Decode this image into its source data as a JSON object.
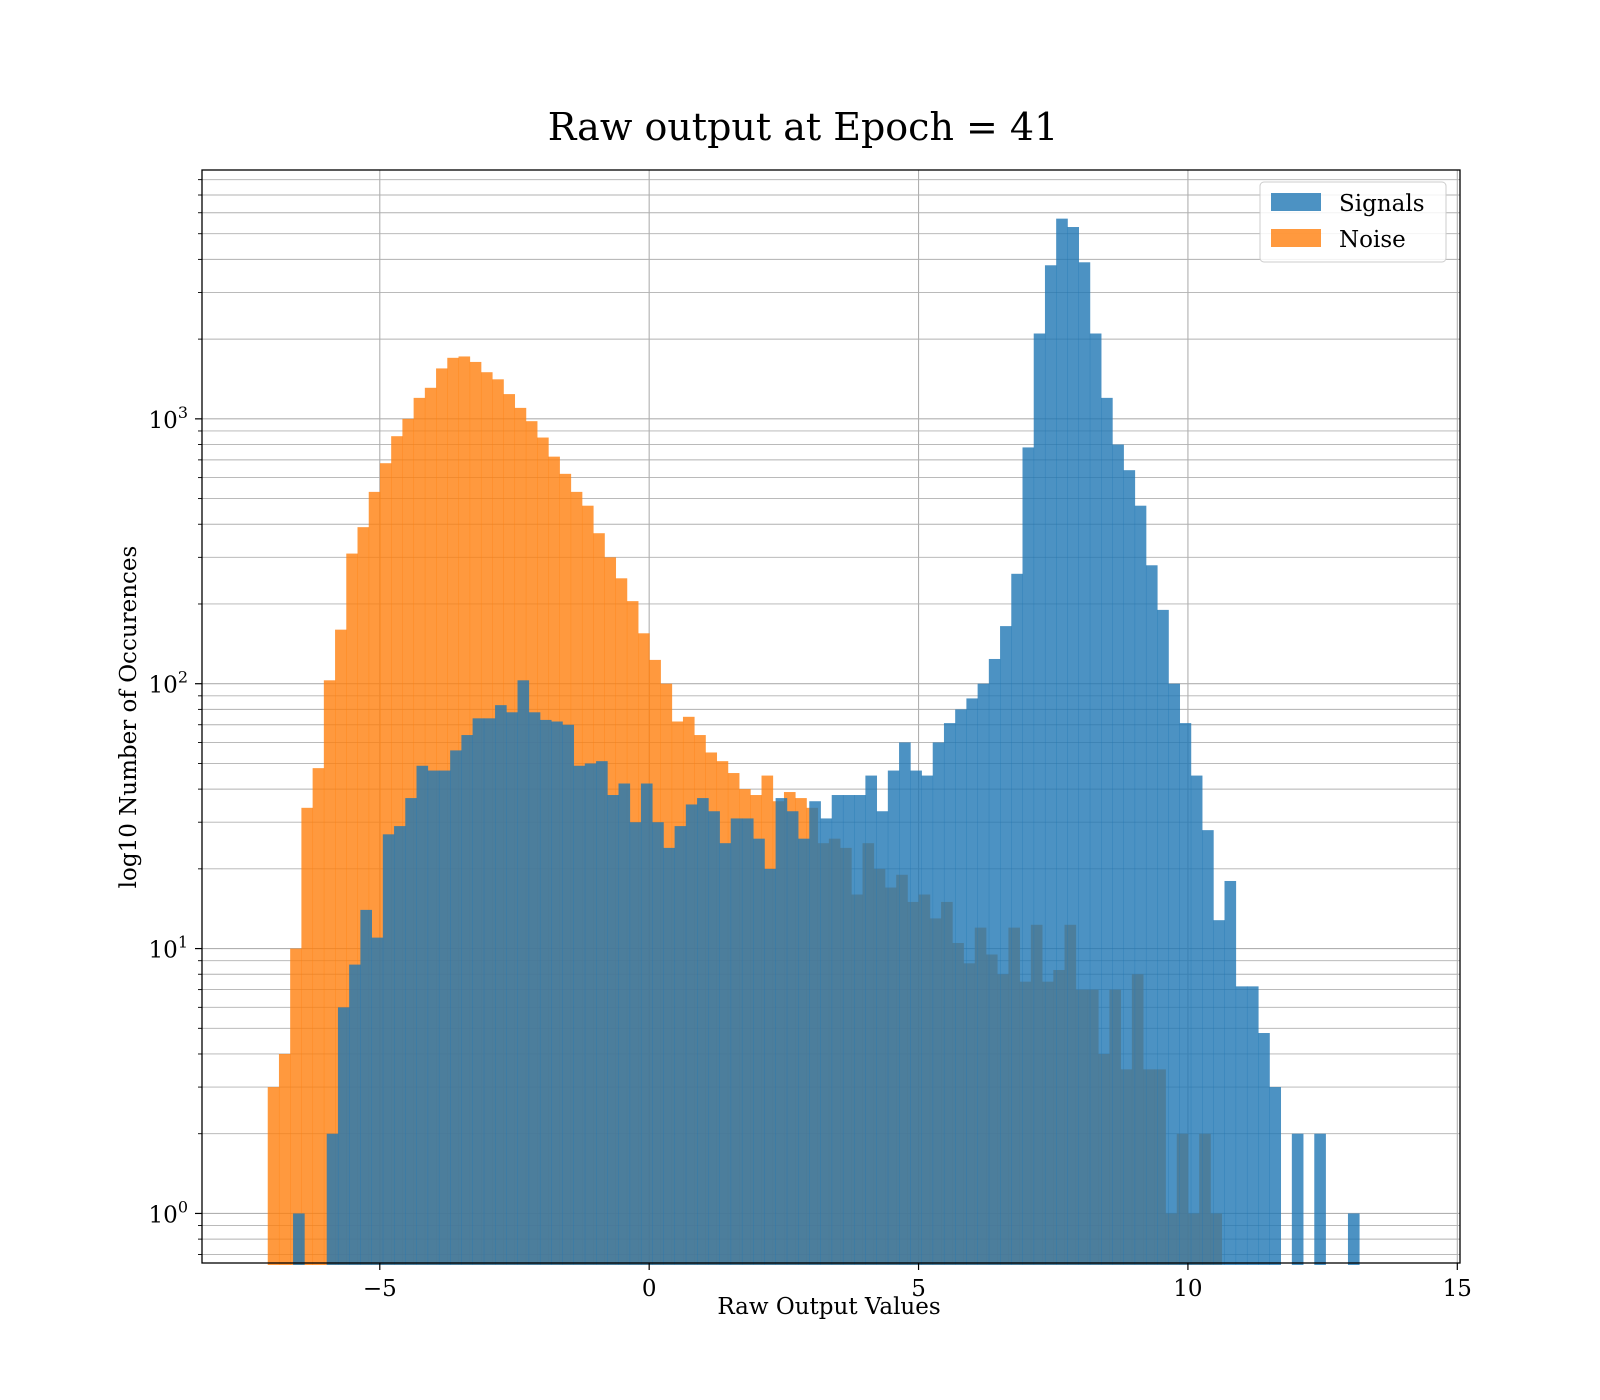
{
  "chart_data": {
    "type": "bar",
    "title": "Raw output at Epoch = 41",
    "xlabel": "Raw Output Values",
    "ylabel": "log10 Number of Occurences",
    "x_scale": "linear",
    "y_scale": "log",
    "xlim": [
      -8.3,
      15.05
    ],
    "ylim": [
      0.65,
      8700
    ],
    "x_ticks": [
      {
        "value": -5,
        "label": "−5"
      },
      {
        "value": 0,
        "label": "0"
      },
      {
        "value": 5,
        "label": "5"
      },
      {
        "value": 10,
        "label": "10"
      },
      {
        "value": 15,
        "label": "15"
      }
    ],
    "y_ticks": [
      {
        "value": 1,
        "base": "10",
        "exp": "0"
      },
      {
        "value": 10,
        "base": "10",
        "exp": "1"
      },
      {
        "value": 100,
        "base": "10",
        "exp": "2"
      },
      {
        "value": 1000,
        "base": "10",
        "exp": "3"
      }
    ],
    "grid": true,
    "legend": {
      "position": "top-right"
    },
    "series": [
      {
        "name": "Noise",
        "color": "#ff7f0e",
        "bin_start": -7.08,
        "bin_width": 0.2083,
        "values": [
          3,
          4,
          10,
          34,
          48,
          103,
          160,
          310,
          390,
          530,
          680,
          860,
          1000,
          1200,
          1310,
          1550,
          1700,
          1720,
          1640,
          1500,
          1410,
          1240,
          1100,
          980,
          850,
          720,
          620,
          530,
          470,
          370,
          300,
          250,
          205,
          155,
          123,
          100,
          72,
          75,
          64,
          55,
          51,
          46,
          40,
          38,
          45,
          36,
          39,
          37,
          34,
          25,
          26,
          24,
          16,
          25,
          20,
          17,
          19,
          15,
          16,
          13,
          15,
          10.5,
          8.8,
          12,
          9.5,
          8,
          12,
          7.5,
          12.3,
          7.5,
          8.3,
          12.3,
          7,
          7,
          4,
          7,
          3.5,
          8,
          3.5,
          3.5,
          1,
          2,
          1,
          2,
          1,
          0.5,
          0.5
        ]
      },
      {
        "name": "Signals",
        "color": "#1f77b4",
        "bin_start": -6.61,
        "bin_width": 0.2083,
        "values": [
          1,
          0.5,
          0.5,
          2,
          6,
          8.7,
          14,
          11,
          27,
          29,
          37,
          49,
          47,
          47,
          56,
          64,
          74,
          74,
          83,
          78,
          103,
          78,
          73,
          72,
          70,
          49,
          50,
          51,
          38,
          42,
          30,
          42,
          30,
          24,
          29,
          35,
          37,
          33,
          25,
          31,
          31,
          26,
          20,
          37,
          33,
          26,
          36,
          31,
          38,
          38,
          38,
          45,
          33,
          47,
          60,
          47,
          45,
          60,
          71,
          80,
          88,
          100,
          124,
          165,
          260,
          780,
          2100,
          3800,
          5700,
          5300,
          3900,
          2100,
          1200,
          800,
          640,
          470,
          280,
          190,
          100,
          71,
          45,
          28,
          12.8,
          18,
          7.2,
          7.2,
          4.8,
          3,
          0.5,
          2,
          0.5,
          2,
          0.5,
          0.5,
          1
        ]
      }
    ]
  }
}
